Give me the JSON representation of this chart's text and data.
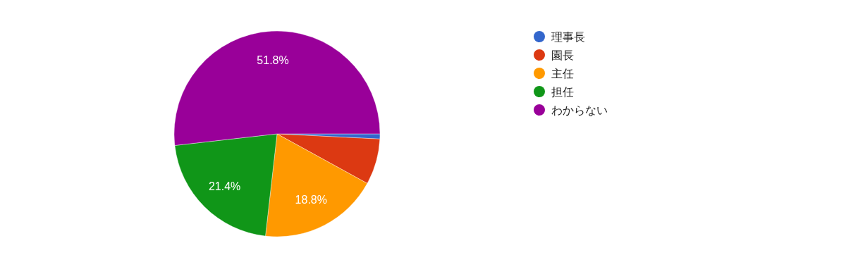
{
  "chart_data": {
    "type": "pie",
    "categories": [
      "理事長",
      "園長",
      "主任",
      "担任",
      "わからない"
    ],
    "values": [
      0.8,
      7.2,
      18.8,
      21.4,
      51.8
    ],
    "colors": [
      "#3366cc",
      "#dc3912",
      "#ff9900",
      "#109618",
      "#990099"
    ],
    "value_labels": [
      null,
      null,
      "18.8%",
      "21.4%",
      "51.8%"
    ],
    "legend": "right"
  }
}
